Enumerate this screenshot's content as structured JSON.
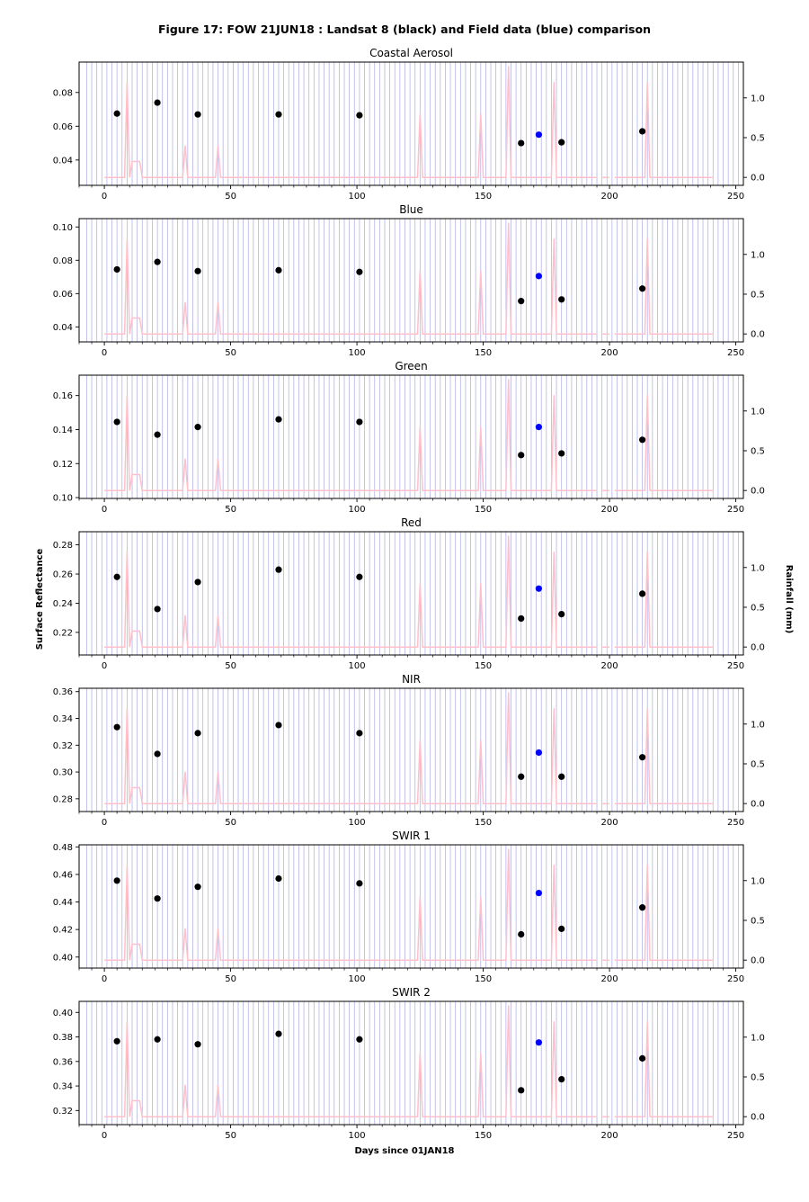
{
  "figure": {
    "title": "Figure 17: FOW 21JUN18 : Landsat 8 (black) and Field data (blue) comparison",
    "shared_ylabel": "Surface Reflectance",
    "shared_y2label": "Rainfall (mm)",
    "shared_xlabel": "Days since 01JAN18"
  },
  "colors": {
    "landsat": "#000000",
    "field": "#0000ff",
    "rainfall": "#ffc0cb",
    "gridlines": "#b4b4e6"
  },
  "chart_data": [
    {
      "type": "scatter",
      "title": "Coastal Aerosol",
      "xlim": [
        -10,
        253
      ],
      "ylim": [
        0.025,
        0.098
      ],
      "y2lim": [
        -0.1,
        1.45
      ],
      "yticks": [
        0.04,
        0.06,
        0.08
      ],
      "y2ticks": [
        0.0,
        0.5,
        1.0
      ],
      "xticks": [
        0,
        50,
        100,
        150,
        200,
        250
      ],
      "series": [
        {
          "name": "Landsat 8",
          "x": [
            5,
            21,
            37,
            69,
            101,
            165,
            181,
            213
          ],
          "y": [
            0.0675,
            0.074,
            0.067,
            0.067,
            0.0665,
            0.05,
            0.0505,
            0.057
          ]
        },
        {
          "name": "Field data",
          "x": [
            172
          ],
          "y": [
            0.055
          ]
        }
      ]
    },
    {
      "type": "scatter",
      "title": "Blue",
      "xlim": [
        -10,
        253
      ],
      "ylim": [
        0.031,
        0.105
      ],
      "y2lim": [
        -0.1,
        1.45
      ],
      "yticks": [
        0.04,
        0.06,
        0.08,
        0.1
      ],
      "y2ticks": [
        0.0,
        0.5,
        1.0
      ],
      "xticks": [
        0,
        50,
        100,
        150,
        200,
        250
      ],
      "series": [
        {
          "name": "Landsat 8",
          "x": [
            5,
            21,
            37,
            69,
            101,
            165,
            181,
            213
          ],
          "y": [
            0.0745,
            0.079,
            0.0735,
            0.074,
            0.073,
            0.0555,
            0.0565,
            0.063
          ]
        },
        {
          "name": "Field data",
          "x": [
            172
          ],
          "y": [
            0.0705
          ]
        }
      ]
    },
    {
      "type": "scatter",
      "title": "Green",
      "xlim": [
        -10,
        253
      ],
      "ylim": [
        0.0995,
        0.172
      ],
      "y2lim": [
        -0.1,
        1.45
      ],
      "yticks": [
        0.1,
        0.12,
        0.14,
        0.16
      ],
      "y2ticks": [
        0.0,
        0.5,
        1.0
      ],
      "xticks": [
        0,
        50,
        100,
        150,
        200,
        250
      ],
      "series": [
        {
          "name": "Landsat 8",
          "x": [
            5,
            21,
            37,
            69,
            101,
            165,
            181,
            213
          ],
          "y": [
            0.1445,
            0.137,
            0.1415,
            0.146,
            0.1445,
            0.125,
            0.126,
            0.134
          ]
        },
        {
          "name": "Field data",
          "x": [
            172
          ],
          "y": [
            0.1415
          ]
        }
      ]
    },
    {
      "type": "scatter",
      "title": "Red",
      "xlim": [
        -10,
        253
      ],
      "ylim": [
        0.2045,
        0.289
      ],
      "y2lim": [
        -0.1,
        1.45
      ],
      "yticks": [
        0.22,
        0.24,
        0.26,
        0.28
      ],
      "y2ticks": [
        0.0,
        0.5,
        1.0
      ],
      "xticks": [
        0,
        50,
        100,
        150,
        200,
        250
      ],
      "series": [
        {
          "name": "Landsat 8",
          "x": [
            5,
            21,
            37,
            69,
            101,
            165,
            181,
            213
          ],
          "y": [
            0.258,
            0.236,
            0.2545,
            0.263,
            0.258,
            0.2295,
            0.2325,
            0.2465
          ]
        },
        {
          "name": "Field data",
          "x": [
            172
          ],
          "y": [
            0.25
          ]
        }
      ]
    },
    {
      "type": "scatter",
      "title": "NIR",
      "xlim": [
        -10,
        253
      ],
      "ylim": [
        0.2705,
        0.3625
      ],
      "y2lim": [
        -0.1,
        1.45
      ],
      "yticks": [
        0.28,
        0.3,
        0.32,
        0.34,
        0.36
      ],
      "y2ticks": [
        0.0,
        0.5,
        1.0
      ],
      "xticks": [
        0,
        50,
        100,
        150,
        200,
        250
      ],
      "series": [
        {
          "name": "Landsat 8",
          "x": [
            5,
            21,
            37,
            69,
            101,
            165,
            181,
            213
          ],
          "y": [
            0.3335,
            0.3135,
            0.329,
            0.335,
            0.329,
            0.2965,
            0.2965,
            0.311
          ]
        },
        {
          "name": "Field data",
          "x": [
            172
          ],
          "y": [
            0.3145
          ]
        }
      ]
    },
    {
      "type": "scatter",
      "title": "SWIR 1",
      "xlim": [
        -10,
        253
      ],
      "ylim": [
        0.392,
        0.4815
      ],
      "y2lim": [
        -0.1,
        1.45
      ],
      "yticks": [
        0.4,
        0.42,
        0.44,
        0.46,
        0.48
      ],
      "y2ticks": [
        0.0,
        0.5,
        1.0
      ],
      "xticks": [
        0,
        50,
        100,
        150,
        200,
        250
      ],
      "series": [
        {
          "name": "Landsat 8",
          "x": [
            5,
            21,
            37,
            69,
            101,
            165,
            181,
            213
          ],
          "y": [
            0.4555,
            0.4425,
            0.451,
            0.457,
            0.4535,
            0.4165,
            0.4205,
            0.436
          ]
        },
        {
          "name": "Field data",
          "x": [
            172
          ],
          "y": [
            0.4465
          ]
        }
      ]
    },
    {
      "type": "scatter",
      "title": "SWIR 2",
      "xlim": [
        -10,
        253
      ],
      "ylim": [
        0.3085,
        0.409
      ],
      "y2lim": [
        -0.1,
        1.45
      ],
      "yticks": [
        0.32,
        0.34,
        0.36,
        0.38,
        0.4
      ],
      "y2ticks": [
        0.0,
        0.5,
        1.0
      ],
      "xticks": [
        0,
        50,
        100,
        150,
        200,
        250
      ],
      "series": [
        {
          "name": "Landsat 8",
          "x": [
            5,
            21,
            37,
            69,
            101,
            165,
            181,
            213
          ],
          "y": [
            0.3765,
            0.378,
            0.374,
            0.3825,
            0.378,
            0.3365,
            0.3455,
            0.3625
          ]
        },
        {
          "name": "Field data",
          "x": [
            172
          ],
          "y": [
            0.3755
          ]
        }
      ]
    }
  ],
  "rainfall": {
    "days": [
      0,
      1,
      2,
      3,
      4,
      5,
      6,
      7,
      8,
      9,
      10,
      11,
      12,
      13,
      14,
      15,
      29,
      30,
      31,
      32,
      33,
      34,
      42,
      43,
      44,
      45,
      46,
      47,
      122,
      123,
      124,
      125,
      126,
      147,
      148,
      149,
      150,
      158,
      159,
      160,
      161,
      162,
      175,
      176,
      177,
      178,
      179,
      180,
      195,
      196,
      197,
      200,
      201,
      202,
      203,
      204,
      205,
      212,
      213,
      214,
      215,
      216,
      217,
      241
    ],
    "mm": [
      0,
      0,
      0,
      0,
      0,
      0,
      0,
      0,
      0,
      1.2,
      0,
      0.2,
      0.2,
      0.2,
      0.2,
      0,
      0,
      0,
      0,
      0.4,
      0,
      0,
      0,
      0,
      0,
      0.4,
      0,
      0,
      0,
      0,
      0,
      0.8,
      0,
      0,
      0,
      0.8,
      0,
      0,
      0,
      1.4,
      0,
      0,
      0,
      0,
      0,
      1.2,
      0,
      0,
      0,
      null,
      0,
      0,
      null,
      0,
      0,
      0,
      0,
      0,
      0,
      0,
      1.2,
      0,
      0,
      0
    ]
  }
}
